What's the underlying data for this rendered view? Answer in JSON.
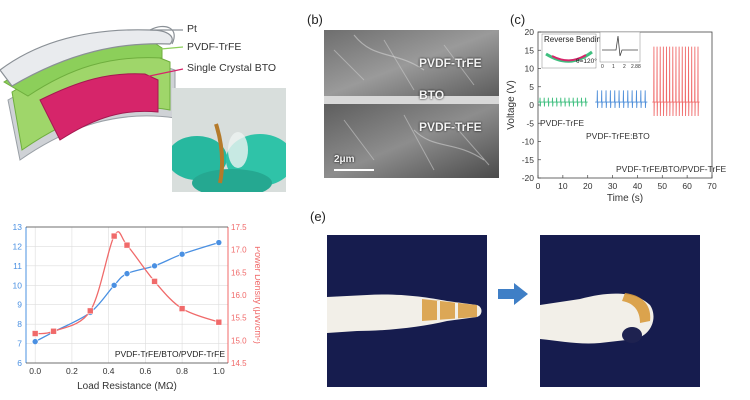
{
  "panels": {
    "a": {
      "layers": [
        {
          "label": "Pt",
          "color": "#9aa0a6"
        },
        {
          "label": "PVDF-TrFE",
          "color": "#8ccf5a"
        },
        {
          "label": "Single Crystal BTO",
          "color": "#d6256a"
        }
      ]
    },
    "b": {
      "label": "(b)",
      "regions": [
        "PVDF-TrFE",
        "BTO",
        "PVDF-TrFE"
      ],
      "scale_bar": "2μm"
    },
    "c": {
      "label": "(c)",
      "inset_title": "Reverse Bending",
      "inset_angle": "θ=120°",
      "inset_ticks": [
        "0",
        "1",
        "2",
        "2.88"
      ],
      "annotations": [
        "PVDF-TrFE",
        "PVDF-TrFE:BTO",
        "PVDF-TrFE/BTO/PVDF-TrFE"
      ]
    },
    "d": {
      "annotation": "PVDF-TrFE/BTO/PVDF-TrFE"
    },
    "e": {
      "label": "(e)"
    }
  },
  "colors": {
    "green_series": "#3fbf7f",
    "blue_series": "#4f8fd9",
    "red_series": "#f06a6a",
    "arrow": "#3f7fc6",
    "glove": "#2fbfa6"
  },
  "chart_data": [
    {
      "panel": "c",
      "type": "line",
      "xlabel": "Time (s)",
      "ylabel": "Voltage (V)",
      "xlim": [
        0,
        70
      ],
      "ylim": [
        -20,
        20
      ],
      "xticks": [
        0,
        10,
        20,
        30,
        40,
        50,
        60,
        70
      ],
      "yticks": [
        20,
        15,
        10,
        5,
        0,
        -5,
        -10,
        -15,
        -20
      ],
      "series": [
        {
          "name": "PVDF-TrFE",
          "color": "#3fbf7f",
          "t_start": 0,
          "t_end": 20,
          "pulses": 12,
          "amplitude": 2,
          "baseline": 0.8
        },
        {
          "name": "PVDF-TrFE:BTO",
          "color": "#4f8fd9",
          "t_start": 23,
          "t_end": 44,
          "pulses": 12,
          "amplitude": 4,
          "baseline": 0.8
        },
        {
          "name": "PVDF-TrFE/BTO/PVDF-TrFE",
          "color": "#f06a6a",
          "t_start": 46,
          "t_end": 65,
          "pulses": 15,
          "amplitude": 16,
          "baseline": 0.8,
          "negative": -3
        }
      ]
    },
    {
      "panel": "d",
      "type": "line",
      "xlabel": "Load Resistance (MΩ)",
      "ylabel": "",
      "ylabel_right": "Power Density (μW/cm²)",
      "xlim": [
        -0.05,
        1.05
      ],
      "ylim_left": [
        6,
        13
      ],
      "ylim_right": [
        14.5,
        17.5
      ],
      "xticks": [
        0.0,
        0.2,
        0.4,
        0.6,
        0.8,
        1.0
      ],
      "yticks_left": [
        6,
        7,
        8,
        9,
        10,
        11,
        12,
        13
      ],
      "yticks_right": [
        14.5,
        15.0,
        15.5,
        16.0,
        16.5,
        17.0,
        17.5
      ],
      "series": [
        {
          "axis": "left",
          "color": "#4a90e2",
          "marker": "circle",
          "x": [
            0.0,
            0.1,
            0.3,
            0.43,
            0.5,
            0.65,
            0.8,
            1.0
          ],
          "y": [
            7.1,
            7.6,
            8.6,
            10.0,
            10.6,
            11.0,
            11.6,
            12.2
          ]
        },
        {
          "axis": "right",
          "color": "#f06a6a",
          "marker": "square",
          "x": [
            0.0,
            0.1,
            0.3,
            0.43,
            0.5,
            0.65,
            0.8,
            1.0
          ],
          "y": [
            15.15,
            15.2,
            15.65,
            17.3,
            17.1,
            16.3,
            15.7,
            15.4
          ]
        }
      ]
    }
  ]
}
